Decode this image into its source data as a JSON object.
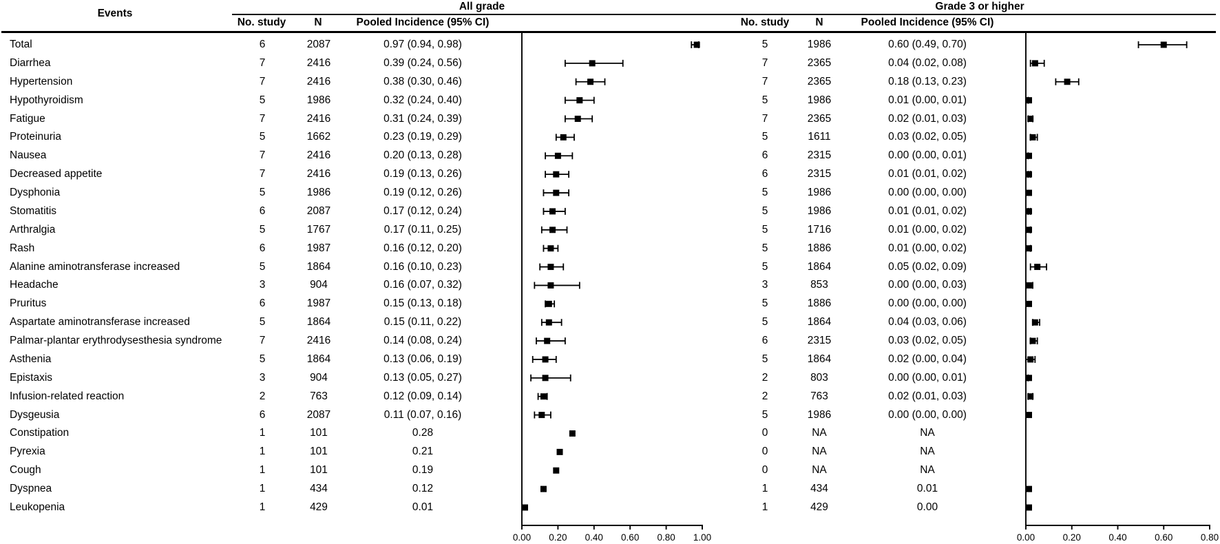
{
  "colors": {
    "marker": "#000000",
    "line": "#000000",
    "text": "#000000",
    "background": "#ffffff"
  },
  "chart_data": {
    "type": "scatter",
    "subtype": "forest-plot",
    "events_label": "Events",
    "sections": [
      {
        "key": "all_grade",
        "title": "All grade",
        "columns": [
          "No. study",
          "N",
          "Pooled Incidence (95% CI)"
        ],
        "axis": {
          "min": 0,
          "max": 1.0,
          "tick_labels": [
            "0.00",
            "0.20",
            "0.40",
            "0.60",
            "0.80",
            "1.00"
          ]
        }
      },
      {
        "key": "grade3",
        "title": "Grade 3 or higher",
        "columns": [
          "No. study",
          "N",
          "Pooled Incidence (95% CI)"
        ],
        "axis": {
          "min": 0,
          "max": 0.8,
          "tick_labels": [
            "0.00",
            "0.20",
            "0.40",
            "0.60",
            "0.80"
          ]
        }
      }
    ],
    "rows": [
      {
        "event": "Total",
        "all_grade": {
          "no_study": "6",
          "n": "2087",
          "pooled": "0.97 (0.94, 0.98)",
          "est": 0.97,
          "lo": 0.94,
          "hi": 0.98
        },
        "grade3": {
          "no_study": "5",
          "n": "1986",
          "pooled": "0.60 (0.49, 0.70)",
          "est": 0.6,
          "lo": 0.49,
          "hi": 0.7
        }
      },
      {
        "event": "Diarrhea",
        "all_grade": {
          "no_study": "7",
          "n": "2416",
          "pooled": "0.39 (0.24, 0.56)",
          "est": 0.39,
          "lo": 0.24,
          "hi": 0.56
        },
        "grade3": {
          "no_study": "7",
          "n": "2365",
          "pooled": "0.04 (0.02, 0.08)",
          "est": 0.04,
          "lo": 0.02,
          "hi": 0.08
        }
      },
      {
        "event": "Hypertension",
        "all_grade": {
          "no_study": "7",
          "n": "2416",
          "pooled": "0.38 (0.30, 0.46)",
          "est": 0.38,
          "lo": 0.3,
          "hi": 0.46
        },
        "grade3": {
          "no_study": "7",
          "n": "2365",
          "pooled": "0.18 (0.13, 0.23)",
          "est": 0.18,
          "lo": 0.13,
          "hi": 0.23
        }
      },
      {
        "event": "Hypothyroidism",
        "all_grade": {
          "no_study": "5",
          "n": "1986",
          "pooled": "0.32 (0.24, 0.40)",
          "est": 0.32,
          "lo": 0.24,
          "hi": 0.4
        },
        "grade3": {
          "no_study": "5",
          "n": "1986",
          "pooled": "0.01 (0.00, 0.01)",
          "est": 0.01,
          "lo": 0.0,
          "hi": 0.01
        }
      },
      {
        "event": "Fatigue",
        "all_grade": {
          "no_study": "7",
          "n": "2416",
          "pooled": "0.31 (0.24, 0.39)",
          "est": 0.31,
          "lo": 0.24,
          "hi": 0.39
        },
        "grade3": {
          "no_study": "7",
          "n": "2365",
          "pooled": "0.02 (0.01, 0.03)",
          "est": 0.02,
          "lo": 0.01,
          "hi": 0.03
        }
      },
      {
        "event": "Proteinuria",
        "all_grade": {
          "no_study": "5",
          "n": "1662",
          "pooled": "0.23 (0.19, 0.29)",
          "est": 0.23,
          "lo": 0.19,
          "hi": 0.29
        },
        "grade3": {
          "no_study": "5",
          "n": "1611",
          "pooled": "0.03 (0.02, 0.05)",
          "est": 0.03,
          "lo": 0.02,
          "hi": 0.05
        }
      },
      {
        "event": "Nausea",
        "all_grade": {
          "no_study": "7",
          "n": "2416",
          "pooled": "0.20 (0.13, 0.28)",
          "est": 0.2,
          "lo": 0.13,
          "hi": 0.28
        },
        "grade3": {
          "no_study": "6",
          "n": "2315",
          "pooled": "0.00 (0.00, 0.01)",
          "est": 0.0,
          "lo": 0.0,
          "hi": 0.01
        }
      },
      {
        "event": "Decreased appetite",
        "all_grade": {
          "no_study": "7",
          "n": "2416",
          "pooled": "0.19 (0.13, 0.26)",
          "est": 0.19,
          "lo": 0.13,
          "hi": 0.26
        },
        "grade3": {
          "no_study": "6",
          "n": "2315",
          "pooled": "0.01 (0.01, 0.02)",
          "est": 0.01,
          "lo": 0.01,
          "hi": 0.02
        }
      },
      {
        "event": "Dysphonia",
        "all_grade": {
          "no_study": "5",
          "n": "1986",
          "pooled": "0.19 (0.12, 0.26)",
          "est": 0.19,
          "lo": 0.12,
          "hi": 0.26
        },
        "grade3": {
          "no_study": "5",
          "n": "1986",
          "pooled": "0.00 (0.00, 0.00)",
          "est": 0.0,
          "lo": 0.0,
          "hi": 0.0
        }
      },
      {
        "event": "Stomatitis",
        "all_grade": {
          "no_study": "6",
          "n": "2087",
          "pooled": "0.17 (0.12, 0.24)",
          "est": 0.17,
          "lo": 0.12,
          "hi": 0.24
        },
        "grade3": {
          "no_study": "5",
          "n": "1986",
          "pooled": "0.01 (0.01, 0.02)",
          "est": 0.01,
          "lo": 0.01,
          "hi": 0.02
        }
      },
      {
        "event": "Arthralgia",
        "all_grade": {
          "no_study": "5",
          "n": "1767",
          "pooled": "0.17 (0.11, 0.25)",
          "est": 0.17,
          "lo": 0.11,
          "hi": 0.25
        },
        "grade3": {
          "no_study": "5",
          "n": "1716",
          "pooled": "0.01 (0.00, 0.02)",
          "est": 0.01,
          "lo": 0.0,
          "hi": 0.02
        }
      },
      {
        "event": "Rash",
        "all_grade": {
          "no_study": "6",
          "n": "1987",
          "pooled": "0.16 (0.12, 0.20)",
          "est": 0.16,
          "lo": 0.12,
          "hi": 0.2
        },
        "grade3": {
          "no_study": "5",
          "n": "1886",
          "pooled": "0.01 (0.00, 0.02)",
          "est": 0.01,
          "lo": 0.0,
          "hi": 0.02
        }
      },
      {
        "event": "Alanine aminotransferase increased",
        "all_grade": {
          "no_study": "5",
          "n": "1864",
          "pooled": "0.16 (0.10, 0.23)",
          "est": 0.16,
          "lo": 0.1,
          "hi": 0.23
        },
        "grade3": {
          "no_study": "5",
          "n": "1864",
          "pooled": "0.05 (0.02, 0.09)",
          "est": 0.05,
          "lo": 0.02,
          "hi": 0.09
        }
      },
      {
        "event": "Headache",
        "all_grade": {
          "no_study": "3",
          "n": "904",
          "pooled": "0.16 (0.07, 0.32)",
          "est": 0.16,
          "lo": 0.07,
          "hi": 0.32
        },
        "grade3": {
          "no_study": "3",
          "n": "853",
          "pooled": "0.00 (0.00, 0.03)",
          "est": 0.0,
          "lo": 0.0,
          "hi": 0.03
        }
      },
      {
        "event": "Pruritus",
        "all_grade": {
          "no_study": "6",
          "n": "1987",
          "pooled": "0.15 (0.13, 0.18)",
          "est": 0.15,
          "lo": 0.13,
          "hi": 0.18
        },
        "grade3": {
          "no_study": "5",
          "n": "1886",
          "pooled": "0.00 (0.00, 0.00)",
          "est": 0.0,
          "lo": 0.0,
          "hi": 0.0
        }
      },
      {
        "event": "Aspartate aminotransferase increased",
        "all_grade": {
          "no_study": "5",
          "n": "1864",
          "pooled": "0.15 (0.11, 0.22)",
          "est": 0.15,
          "lo": 0.11,
          "hi": 0.22
        },
        "grade3": {
          "no_study": "5",
          "n": "1864",
          "pooled": "0.04 (0.03, 0.06)",
          "est": 0.04,
          "lo": 0.03,
          "hi": 0.06
        }
      },
      {
        "event": "Palmar-plantar erythrodysesthesia syndrome",
        "all_grade": {
          "no_study": "7",
          "n": "2416",
          "pooled": "0.14 (0.08, 0.24)",
          "est": 0.14,
          "lo": 0.08,
          "hi": 0.24
        },
        "grade3": {
          "no_study": "6",
          "n": "2315",
          "pooled": "0.03 (0.02, 0.05)",
          "est": 0.03,
          "lo": 0.02,
          "hi": 0.05
        }
      },
      {
        "event": "Asthenia",
        "all_grade": {
          "no_study": "5",
          "n": "1864",
          "pooled": "0.13 (0.06, 0.19)",
          "est": 0.13,
          "lo": 0.06,
          "hi": 0.19
        },
        "grade3": {
          "no_study": "5",
          "n": "1864",
          "pooled": "0.02 (0.00, 0.04)",
          "est": 0.02,
          "lo": 0.0,
          "hi": 0.04
        }
      },
      {
        "event": "Epistaxis",
        "all_grade": {
          "no_study": "3",
          "n": "904",
          "pooled": "0.13 (0.05, 0.27)",
          "est": 0.13,
          "lo": 0.05,
          "hi": 0.27
        },
        "grade3": {
          "no_study": "2",
          "n": "803",
          "pooled": "0.00 (0.00, 0.01)",
          "est": 0.0,
          "lo": 0.0,
          "hi": 0.01
        }
      },
      {
        "event": "Infusion-related reaction",
        "all_grade": {
          "no_study": "2",
          "n": "763",
          "pooled": "0.12 (0.09, 0.14)",
          "est": 0.12,
          "lo": 0.09,
          "hi": 0.14
        },
        "grade3": {
          "no_study": "2",
          "n": "763",
          "pooled": "0.02 (0.01, 0.03)",
          "est": 0.02,
          "lo": 0.01,
          "hi": 0.03
        }
      },
      {
        "event": "Dysgeusia",
        "all_grade": {
          "no_study": "6",
          "n": "2087",
          "pooled": "0.11 (0.07, 0.16)",
          "est": 0.11,
          "lo": 0.07,
          "hi": 0.16
        },
        "grade3": {
          "no_study": "5",
          "n": "1986",
          "pooled": "0.00 (0.00, 0.00)",
          "est": 0.0,
          "lo": 0.0,
          "hi": 0.0
        }
      },
      {
        "event": "Constipation",
        "all_grade": {
          "no_study": "1",
          "n": "101",
          "pooled": "0.28",
          "est": 0.28,
          "lo": null,
          "hi": null
        },
        "grade3": {
          "no_study": "0",
          "n": "NA",
          "pooled": "NA",
          "est": null,
          "lo": null,
          "hi": null
        }
      },
      {
        "event": "Pyrexia",
        "all_grade": {
          "no_study": "1",
          "n": "101",
          "pooled": "0.21",
          "est": 0.21,
          "lo": null,
          "hi": null
        },
        "grade3": {
          "no_study": "0",
          "n": "NA",
          "pooled": "NA",
          "est": null,
          "lo": null,
          "hi": null
        }
      },
      {
        "event": "Cough",
        "all_grade": {
          "no_study": "1",
          "n": "101",
          "pooled": "0.19",
          "est": 0.19,
          "lo": null,
          "hi": null
        },
        "grade3": {
          "no_study": "0",
          "n": "NA",
          "pooled": "NA",
          "est": null,
          "lo": null,
          "hi": null
        }
      },
      {
        "event": "Dyspnea",
        "all_grade": {
          "no_study": "1",
          "n": "434",
          "pooled": "0.12",
          "est": 0.12,
          "lo": null,
          "hi": null
        },
        "grade3": {
          "no_study": "1",
          "n": "434",
          "pooled": "0.01",
          "est": 0.01,
          "lo": null,
          "hi": null
        }
      },
      {
        "event": "Leukopenia",
        "all_grade": {
          "no_study": "1",
          "n": "429",
          "pooled": "0.01",
          "est": 0.01,
          "lo": null,
          "hi": null
        },
        "grade3": {
          "no_study": "1",
          "n": "429",
          "pooled": "0.00",
          "est": 0.0,
          "lo": null,
          "hi": null
        }
      }
    ]
  }
}
